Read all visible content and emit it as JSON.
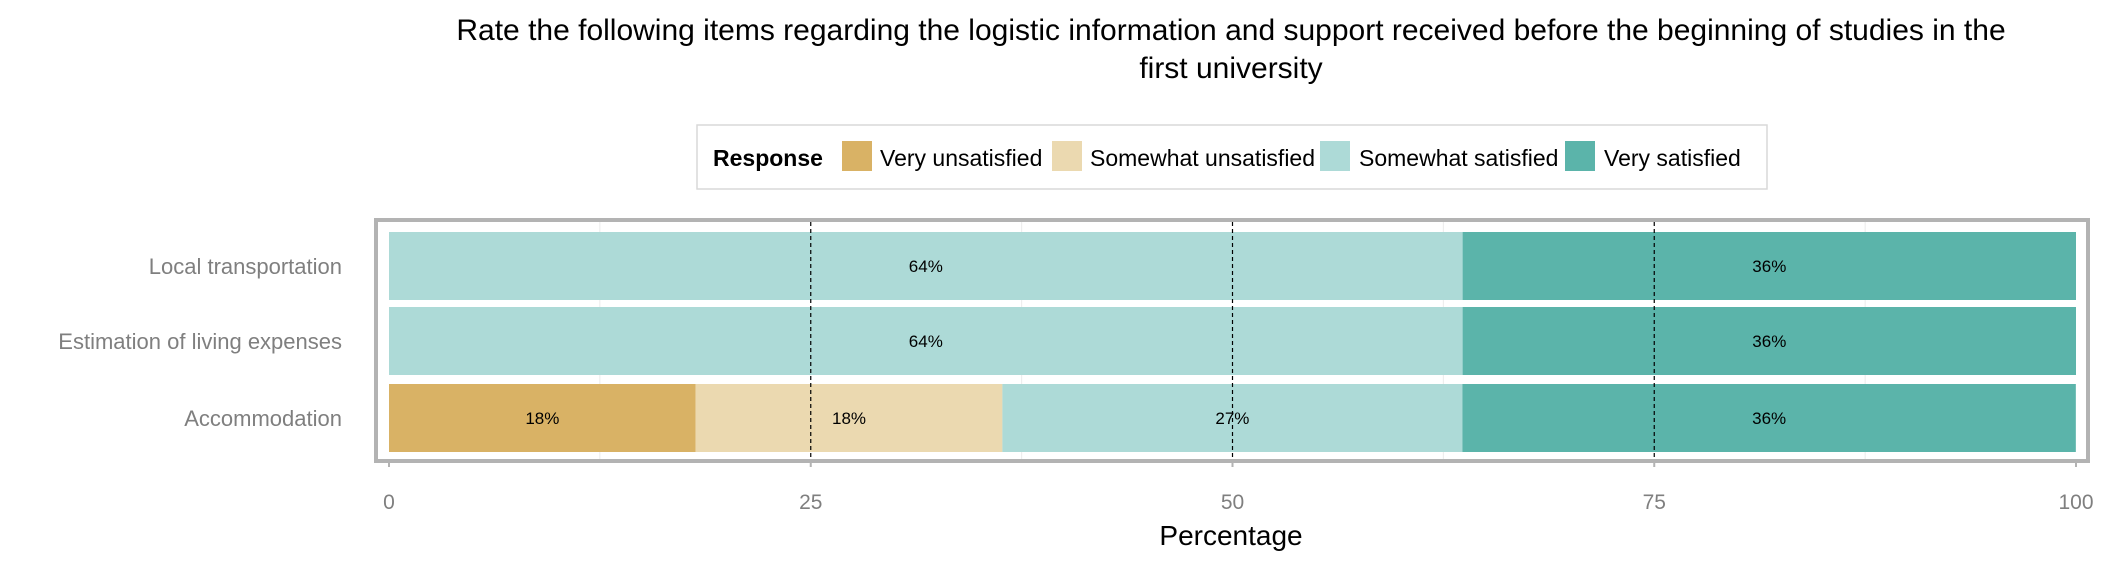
{
  "chart_data": {
    "type": "bar",
    "orientation": "horizontal",
    "stacked": true,
    "title": "Rate the following items regarding the logistic information and support received before the beginning of studies in the first university",
    "title_lines": [
      "Rate the following items regarding the logistic information and support received before the beginning of studies in the",
      "first university"
    ],
    "xlabel": "Percentage",
    "ylabel": "",
    "xlim": [
      0,
      100
    ],
    "x_ticks": [
      0,
      25,
      50,
      75,
      100
    ],
    "x_tick_labels": [
      "0",
      "25",
      "50",
      "75",
      "100"
    ],
    "reference_lines": [
      25,
      50,
      75
    ],
    "legend": {
      "title": "Response",
      "position": "top",
      "entries": [
        "Very unsatisfied",
        "Somewhat unsatisfied",
        "Somewhat satisfied",
        "Very satisfied"
      ]
    },
    "categories": [
      "Local transportation",
      "Estimation of living expenses",
      "Accommodation"
    ],
    "series": [
      {
        "name": "Very unsatisfied",
        "color": "#D9B265",
        "values": [
          0,
          0,
          18.18
        ],
        "labels": [
          "",
          "",
          "18%"
        ]
      },
      {
        "name": "Somewhat unsatisfied",
        "color": "#EBD9B0",
        "values": [
          0,
          0,
          18.18
        ],
        "labels": [
          "",
          "",
          "18%"
        ]
      },
      {
        "name": "Somewhat satisfied",
        "color": "#ADDAD7",
        "values": [
          63.64,
          63.64,
          27.27
        ],
        "labels": [
          "64%",
          "64%",
          "27%"
        ]
      },
      {
        "name": "Very satisfied",
        "color": "#5BB4AA",
        "values": [
          36.36,
          36.36,
          36.36
        ],
        "labels": [
          "36%",
          "36%",
          "36%"
        ]
      }
    ],
    "colors": {
      "panel_border": "#B3B3B3",
      "axis_text": "#7F7F7F",
      "title_text": "#000000",
      "grid": "#EBEBEB"
    }
  }
}
